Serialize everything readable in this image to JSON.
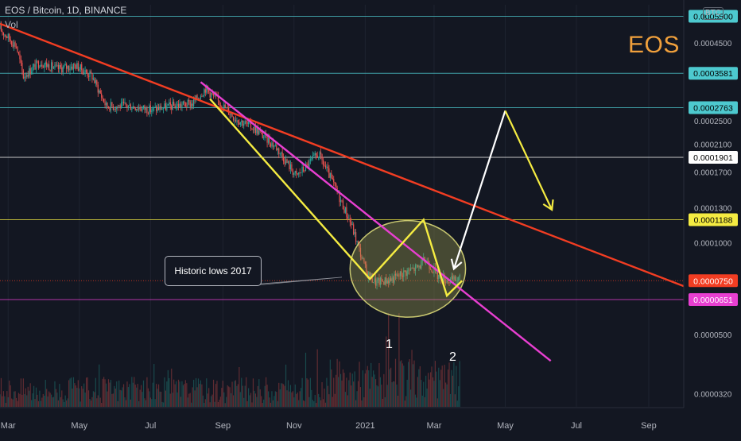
{
  "header": {
    "title": "EOS / Bitcoin, 1D, BINANCE",
    "volume_label": "Vol"
  },
  "currency_badge": "BTC",
  "chart_label": "EOS",
  "callout_text": "Historic lows 2017",
  "pattern_labels": [
    "1",
    "2"
  ],
  "colors": {
    "background": "#131722",
    "trendline_long": "#f23d22",
    "trendline_short": "#e83fd1",
    "pattern_path": "#f5ec42",
    "projection_up": "#ffffff",
    "projection_down": "#f5ec42",
    "ellipse_fill": "#9a9a4e",
    "ellipse_stroke": "#c9c870",
    "candle_up": "#26a69a",
    "candle_down": "#ef5350",
    "horizontal_line": "#4dc9cf"
  },
  "chart_data": {
    "type": "candlestick",
    "symbol": "EOS / Bitcoin",
    "interval": "1D",
    "exchange": "BINANCE",
    "y_scale": "log",
    "y_range": [
      2.9e-05,
      0.0006
    ],
    "x_range": [
      "2020-02-23",
      "2021-10-01"
    ],
    "x_tick_labels": [
      {
        "label": "Mar",
        "date": "2020-03-01"
      },
      {
        "label": "May",
        "date": "2020-05-01"
      },
      {
        "label": "Jul",
        "date": "2020-07-01"
      },
      {
        "label": "Sep",
        "date": "2020-09-01"
      },
      {
        "label": "Nov",
        "date": "2020-11-01"
      },
      {
        "label": "2021",
        "date": "2021-01-01"
      },
      {
        "label": "Mar",
        "date": "2021-03-01"
      },
      {
        "label": "May",
        "date": "2021-05-01"
      },
      {
        "label": "Jul",
        "date": "2021-07-01"
      },
      {
        "label": "Sep",
        "date": "2021-09-01"
      }
    ],
    "y_tick_labels": [
      {
        "label": "0.0004500",
        "value": 0.00045
      },
      {
        "label": "0.0002500",
        "value": 0.00025
      },
      {
        "label": "0.0002100",
        "value": 0.00021
      },
      {
        "label": "0.0001700",
        "value": 0.00017
      },
      {
        "label": "0.0001300",
        "value": 0.00013
      },
      {
        "label": "0.0001000",
        "value": 0.0001
      },
      {
        "label": "0.0000500",
        "value": 5e-05
      },
      {
        "label": "0.0000320",
        "value": 3.2e-05
      }
    ],
    "price_labels": [
      {
        "label": "0.0005500",
        "value": 0.00055,
        "bg": "#4dc9cf",
        "fg": "#000000"
      },
      {
        "label": "0.0003581",
        "value": 0.0003581,
        "bg": "#4dc9cf",
        "fg": "#000000"
      },
      {
        "label": "0.0002763",
        "value": 0.0002763,
        "bg": "#4dc9cf",
        "fg": "#000000"
      },
      {
        "label": "0.0001901",
        "value": 0.0001901,
        "bg": "#ffffff",
        "fg": "#000000"
      },
      {
        "label": "0.0001188",
        "value": 0.0001188,
        "bg": "#f5ec42",
        "fg": "#000000"
      },
      {
        "label": "0.0000750",
        "value": 7.5e-05,
        "bg": "#f23d22",
        "fg": "#ffffff"
      },
      {
        "label": "0.0000651",
        "value": 6.51e-05,
        "bg": "#e83fd1",
        "fg": "#ffffff"
      }
    ],
    "horizontal_levels": [
      {
        "value": 0.00055,
        "color": "#4dc9cf",
        "style": "solid"
      },
      {
        "value": 0.0003581,
        "color": "#4dc9cf",
        "style": "solid"
      },
      {
        "value": 0.0002763,
        "color": "#4dc9cf",
        "style": "solid"
      },
      {
        "value": 0.0001901,
        "color": "#ffffff",
        "style": "solid"
      },
      {
        "value": 0.0001188,
        "color": "#f5ec42",
        "style": "solid"
      },
      {
        "value": 7.5e-05,
        "color": "#f23d22",
        "style": "dotted"
      },
      {
        "value": 6.51e-05,
        "color": "#e83fd1",
        "style": "solid"
      }
    ],
    "price_path": [
      {
        "date": "2020-02-23",
        "price": 0.0005
      },
      {
        "date": "2020-03-08",
        "price": 0.00044
      },
      {
        "date": "2020-03-14",
        "price": 0.00035
      },
      {
        "date": "2020-03-28",
        "price": 0.00039
      },
      {
        "date": "2020-04-12",
        "price": 0.00037
      },
      {
        "date": "2020-04-28",
        "price": 0.00038
      },
      {
        "date": "2020-05-12",
        "price": 0.00035
      },
      {
        "date": "2020-05-24",
        "price": 0.00028
      },
      {
        "date": "2020-06-15",
        "price": 0.00028
      },
      {
        "date": "2020-07-01",
        "price": 0.000272
      },
      {
        "date": "2020-07-20",
        "price": 0.00028
      },
      {
        "date": "2020-08-06",
        "price": 0.000285
      },
      {
        "date": "2020-08-17",
        "price": 0.00032
      },
      {
        "date": "2020-08-28",
        "price": 0.00029
      },
      {
        "date": "2020-09-12",
        "price": 0.000255
      },
      {
        "date": "2020-09-29",
        "price": 0.000235
      },
      {
        "date": "2020-10-17",
        "price": 0.000205
      },
      {
        "date": "2020-11-03",
        "price": 0.000165
      },
      {
        "date": "2020-11-22",
        "price": 0.000195
      },
      {
        "date": "2020-12-05",
        "price": 0.000155
      },
      {
        "date": "2020-12-20",
        "price": 0.000115
      },
      {
        "date": "2021-01-02",
        "price": 8e-05
      },
      {
        "date": "2021-01-10",
        "price": 7.4e-05
      },
      {
        "date": "2021-01-24",
        "price": 7.6e-05
      },
      {
        "date": "2021-02-04",
        "price": 8e-05
      },
      {
        "date": "2021-02-15",
        "price": 8.3e-05
      },
      {
        "date": "2021-02-22",
        "price": 8.8e-05
      },
      {
        "date": "2021-03-04",
        "price": 7.8e-05
      },
      {
        "date": "2021-03-14",
        "price": 7.5e-05
      },
      {
        "date": "2021-03-23",
        "price": 7.6e-05
      }
    ],
    "volume_scale_max": 100,
    "trendlines": [
      {
        "name": "long-term",
        "color": "#f23d22",
        "from": {
          "date": "2020-02-23",
          "price": 0.00052
        },
        "to": {
          "date": "2021-10-01",
          "price": 7.2e-05
        }
      },
      {
        "name": "short-term",
        "color": "#e83fd1",
        "from": {
          "date": "2020-08-13",
          "price": 0.000335
        },
        "to": {
          "date": "2021-06-09",
          "price": 4.1e-05
        }
      }
    ],
    "pattern_path": [
      {
        "date": "2020-08-21",
        "price": 0.000295
      },
      {
        "date": "2021-01-05",
        "price": 7.6e-05
      },
      {
        "date": "2021-02-20",
        "price": 0.0001188
      },
      {
        "date": "2021-03-12",
        "price": 6.7e-05
      },
      {
        "date": "2021-03-25",
        "price": 7.5e-05
      }
    ],
    "projection_up": [
      {
        "date": "2021-03-18",
        "price": 8.2e-05
      },
      {
        "date": "2021-05-01",
        "price": 0.00027
      }
    ],
    "projection_down": [
      {
        "date": "2021-05-01",
        "price": 0.00027
      },
      {
        "date": "2021-06-10",
        "price": 0.000128
      }
    ],
    "ellipse": {
      "center": {
        "date": "2021-02-07",
        "price": 7.9e-05
      },
      "date_span": [
        "2020-12-19",
        "2021-03-28"
      ],
      "price_span": [
        5.7e-05,
        0.000118
      ]
    },
    "callout": {
      "text": "Historic lows 2017",
      "points_to": {
        "date": "2020-12-12",
        "price": 7.7e-05
      }
    },
    "pattern_markers": [
      {
        "label": "1",
        "date": "2021-01-05",
        "price": 5.9e-05
      },
      {
        "label": "2",
        "date": "2021-03-03",
        "price": 5.65e-05
      }
    ]
  }
}
